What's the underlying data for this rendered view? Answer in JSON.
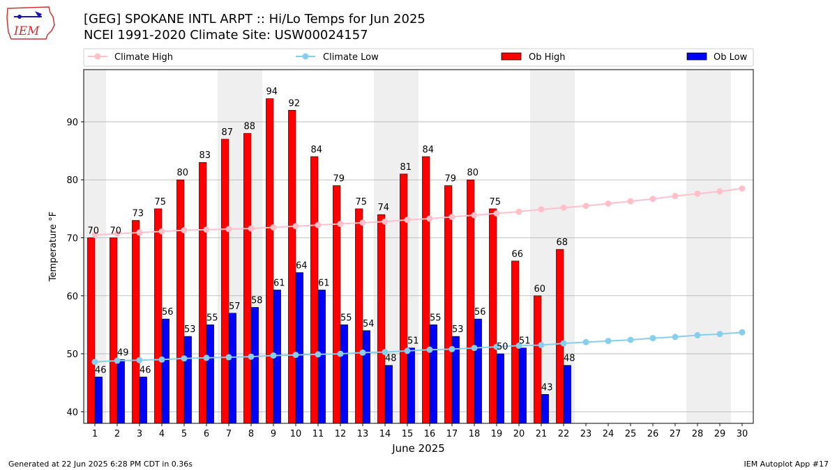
{
  "title_line1": "[GEG] SPOKANE INTL ARPT :: Hi/Lo Temps for Jun 2025",
  "title_line2": "NCEI 1991-2020 Climate Site: USW00024157",
  "footer_left": "Generated at 22 Jun 2025 6:28 PM CDT in 0.36s",
  "footer_right": "IEM Autoplot App #17",
  "logo_text": "IEM",
  "colors": {
    "ob_high": "#ff0000",
    "ob_low": "#0000ff",
    "climate_high": "#ffc0cb",
    "climate_low": "#87ceeb",
    "weekend_band": "#efefef",
    "grid": "#b0b0b0"
  },
  "chart_data": {
    "type": "bar",
    "xlabel": "June 2025",
    "ylabel": "Temperature °F",
    "ylim": [
      38,
      99
    ],
    "xlim": [
      0.5,
      30.5
    ],
    "yticks": [
      40,
      50,
      60,
      70,
      80,
      90
    ],
    "grid": "horizontal",
    "legend_placement": "top",
    "days": [
      1,
      2,
      3,
      4,
      5,
      6,
      7,
      8,
      9,
      10,
      11,
      12,
      13,
      14,
      15,
      16,
      17,
      18,
      19,
      20,
      21,
      22,
      23,
      24,
      25,
      26,
      27,
      28,
      29,
      30
    ],
    "weekend_bands": [
      [
        1,
        1
      ],
      [
        7,
        8
      ],
      [
        14,
        15
      ],
      [
        21,
        22
      ],
      [
        28,
        29
      ]
    ],
    "legend": {
      "climate_high": "Climate High",
      "climate_low": "Climate Low",
      "ob_high": "Ob High",
      "ob_low": "Ob Low"
    },
    "series": [
      {
        "name": "Ob High",
        "type": "bar",
        "values": [
          70,
          70,
          73,
          75,
          80,
          83,
          87,
          88,
          94,
          92,
          84,
          79,
          75,
          74,
          81,
          84,
          79,
          80,
          75,
          66,
          60,
          68
        ]
      },
      {
        "name": "Ob Low",
        "type": "bar",
        "values": [
          46,
          49,
          46,
          56,
          53,
          55,
          57,
          58,
          61,
          64,
          61,
          55,
          54,
          48,
          51,
          55,
          53,
          56,
          50,
          51,
          43,
          48
        ]
      },
      {
        "name": "Climate High",
        "type": "line",
        "values": [
          70.5,
          70.7,
          70.9,
          71.1,
          71.3,
          71.4,
          71.5,
          71.6,
          71.8,
          72.0,
          72.2,
          72.4,
          72.6,
          72.8,
          73.1,
          73.3,
          73.6,
          73.9,
          74.2,
          74.5,
          74.9,
          75.2,
          75.5,
          75.9,
          76.3,
          76.7,
          77.2,
          77.6,
          78.0,
          78.5
        ]
      },
      {
        "name": "Climate Low",
        "type": "line",
        "values": [
          48.6,
          48.8,
          48.9,
          49.0,
          49.2,
          49.3,
          49.4,
          49.5,
          49.7,
          49.8,
          49.9,
          50.0,
          50.2,
          50.3,
          50.5,
          50.7,
          50.8,
          51.0,
          51.2,
          51.4,
          51.5,
          51.8,
          52.0,
          52.2,
          52.4,
          52.7,
          52.9,
          53.2,
          53.4,
          53.7
        ]
      }
    ]
  }
}
